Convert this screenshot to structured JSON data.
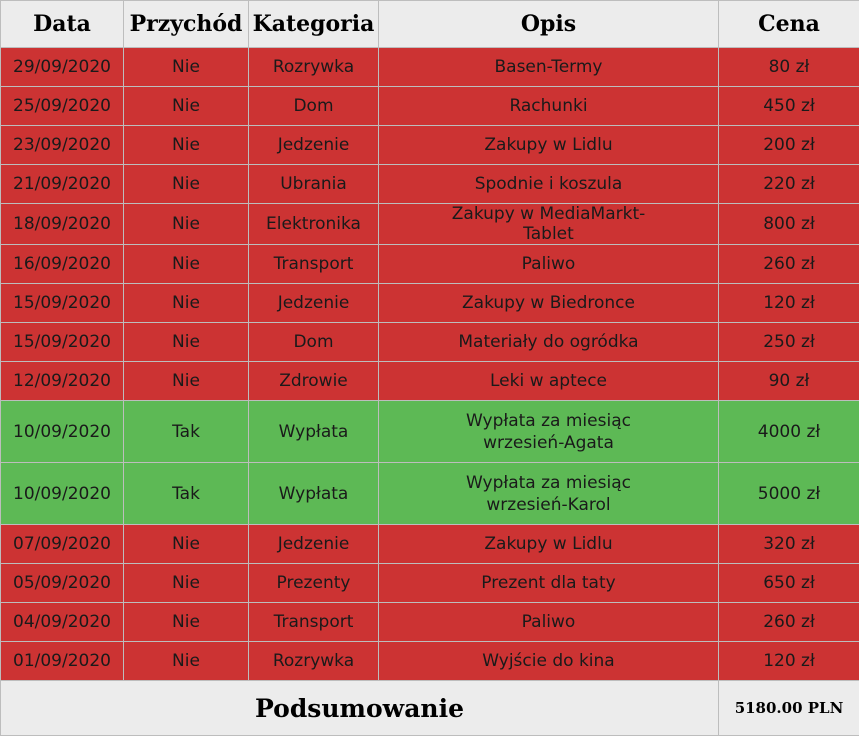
{
  "colors": {
    "expense_row": "#cc3333",
    "income_row": "#5db955",
    "header_bg": "#ececec"
  },
  "headers": [
    "Data",
    "Przychód",
    "Kategoria",
    "Opis",
    "Cena"
  ],
  "rows": [
    {
      "date": "29/09/2020",
      "income": "Nie",
      "category": "Rozrywka",
      "description": "Basen-Termy",
      "price": "80 zł",
      "type": "expense"
    },
    {
      "date": "25/09/2020",
      "income": "Nie",
      "category": "Dom",
      "description": "Rachunki",
      "price": "450 zł",
      "type": "expense"
    },
    {
      "date": "23/09/2020",
      "income": "Nie",
      "category": "Jedzenie",
      "description": "Zakupy w Lidlu",
      "price": "200 zł",
      "type": "expense"
    },
    {
      "date": "21/09/2020",
      "income": "Nie",
      "category": "Ubrania",
      "description": "Spodnie i koszula",
      "price": "220 zł",
      "type": "expense"
    },
    {
      "date": "18/09/2020",
      "income": "Nie",
      "category": "Elektronika",
      "description": "Zakupy w MediaMarkt-Tablet",
      "price": "800 zł",
      "type": "expense"
    },
    {
      "date": "16/09/2020",
      "income": "Nie",
      "category": "Transport",
      "description": "Paliwo",
      "price": "260 zł",
      "type": "expense"
    },
    {
      "date": "15/09/2020",
      "income": "Nie",
      "category": "Jedzenie",
      "description": "Zakupy w Biedronce",
      "price": "120 zł",
      "type": "expense"
    },
    {
      "date": "15/09/2020",
      "income": "Nie",
      "category": "Dom",
      "description": "Materiały do ogródka",
      "price": "250 zł",
      "type": "expense"
    },
    {
      "date": "12/09/2020",
      "income": "Nie",
      "category": "Zdrowie",
      "description": "Leki w aptece",
      "price": "90 zł",
      "type": "expense"
    },
    {
      "date": "10/09/2020",
      "income": "Tak",
      "category": "Wypłata",
      "description": "Wypłata za miesiąc wrzesień-Agata",
      "price": "4000 zł",
      "type": "income"
    },
    {
      "date": "10/09/2020",
      "income": "Tak",
      "category": "Wypłata",
      "description": "Wypłata za miesiąc wrzesień-Karol",
      "price": "5000 zł",
      "type": "income"
    },
    {
      "date": "07/09/2020",
      "income": "Nie",
      "category": "Jedzenie",
      "description": "Zakupy w Lidlu",
      "price": "320 zł",
      "type": "expense"
    },
    {
      "date": "05/09/2020",
      "income": "Nie",
      "category": "Prezenty",
      "description": "Prezent dla taty",
      "price": "650 zł",
      "type": "expense"
    },
    {
      "date": "04/09/2020",
      "income": "Nie",
      "category": "Transport",
      "description": "Paliwo",
      "price": "260 zł",
      "type": "expense"
    },
    {
      "date": "01/09/2020",
      "income": "Nie",
      "category": "Rozrywka",
      "description": "Wyjście do kina",
      "price": "120 zł",
      "type": "expense"
    }
  ],
  "summary": {
    "label": "Podsumowanie",
    "value": "5180.00 PLN"
  }
}
